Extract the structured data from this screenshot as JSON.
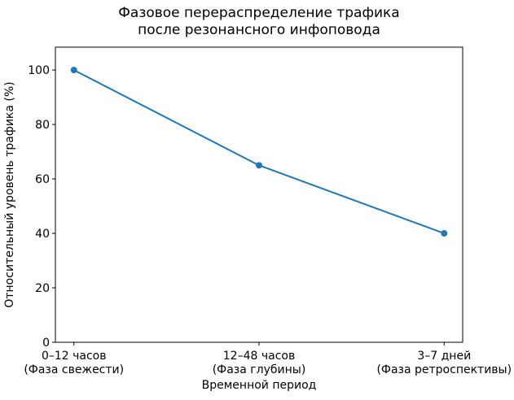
{
  "chart_data": {
    "type": "line",
    "title": "Фазовое перераспределение трафика\nпосле резонансного инфоповода",
    "categories": [
      "0–12 часов\n(Фаза свежести)",
      "12–48 часов\n(Фаза глубины)",
      "3–7 дней\n(Фаза ретроспективы)"
    ],
    "values": [
      100,
      65,
      40
    ],
    "xlabel": "Временной период",
    "ylabel": "Относительный уровень трафика (%)",
    "yticks": [
      0,
      20,
      40,
      60,
      80,
      100
    ],
    "ylim": [
      0,
      108.4
    ],
    "xlim": [
      -0.1,
      2.1
    ],
    "grid": false,
    "legend": "none",
    "marker": "circle",
    "line_color": "#1f77b4",
    "marker_color": "#1f77b4",
    "axis_color": "#000000",
    "text_color": "#000000",
    "background_color": "#ffffff"
  }
}
